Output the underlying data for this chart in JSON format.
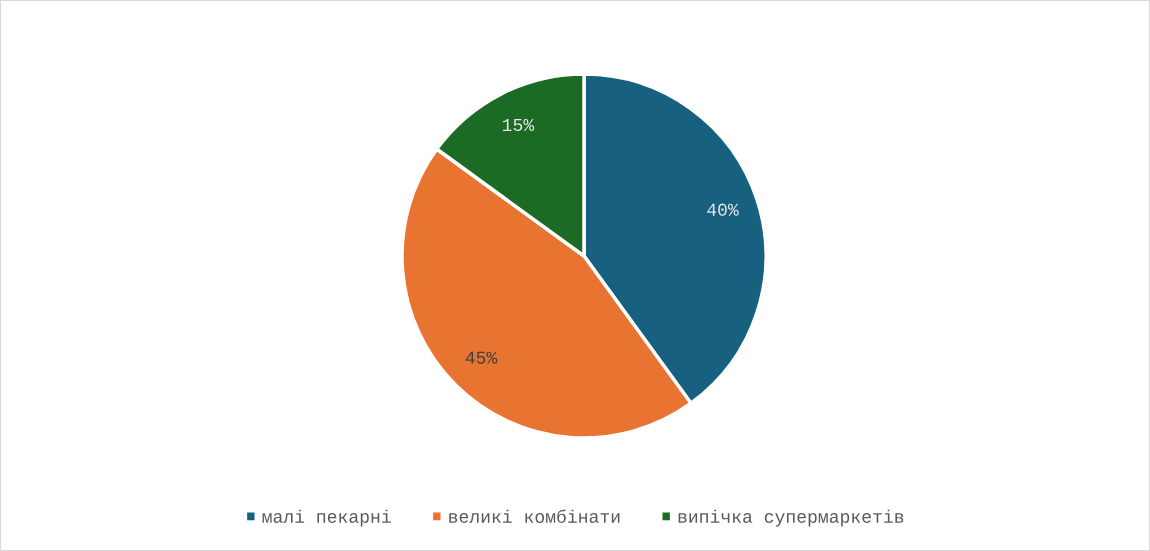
{
  "chart_data": {
    "type": "pie",
    "categories": [
      "малі пекарні",
      "великі комбінати",
      "випічка супермаркетів"
    ],
    "values": [
      40,
      45,
      15
    ],
    "colors": [
      "#17607f",
      "#e97331",
      "#1b6b24"
    ],
    "value_labels": [
      "40%",
      "45%",
      "15%"
    ],
    "legend": "bottom"
  }
}
